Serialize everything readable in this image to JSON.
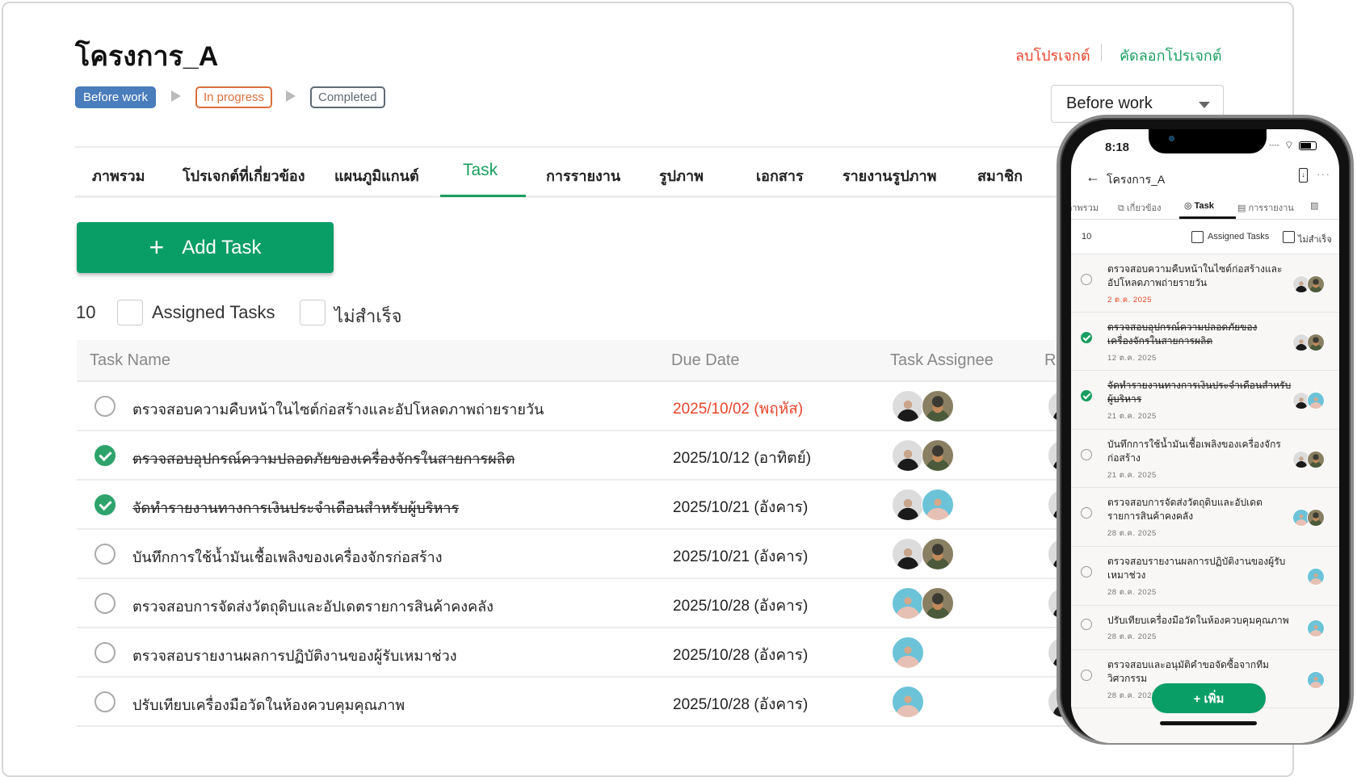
{
  "project": {
    "title": "โครงการ_A",
    "delete_label": "ลบโปรเจกต์",
    "copy_label": "คัดลอกโปรเจกต์"
  },
  "status_steps": [
    "Before work",
    "In progress",
    "Completed"
  ],
  "status_select": {
    "value": "Before work"
  },
  "tabs": [
    "ภาพรวม",
    "โปรเจกต์ที่เกี่ยวข้อง",
    "แผนภูมิแกนต์",
    "Task",
    "การรายงาน",
    "รูปภาพ",
    "เอกสาร",
    "รายงานรูปภาพ",
    "สมาชิก"
  ],
  "active_tab": "Task",
  "add_task_label": "Add Task",
  "filters": {
    "count": "10",
    "assigned_label": "Assigned Tasks",
    "incomplete_label": "ไม่สำเร็จ"
  },
  "columns": [
    "Task Name",
    "Due Date",
    "Task Assignee",
    "R"
  ],
  "tasks": [
    {
      "name": "ตรวจสอบความคืบหน้าในไซต์ก่อสร้างและอัปโหลดภาพถ่ายรายวัน",
      "due": "2025/10/02 (พฤหัส)",
      "due_short": "2 ต.ค. 2025",
      "done": false,
      "overdue": true,
      "assignees": [
        "a",
        "b"
      ]
    },
    {
      "name": "ตรวจสอบอุปกรณ์ความปลอดภัยของเครื่องจักรในสายการผลิต",
      "due": "2025/10/12 (อาทิตย์)",
      "due_short": "12 ต.ค. 2025",
      "done": true,
      "overdue": false,
      "assignees": [
        "a",
        "b"
      ]
    },
    {
      "name": "จัดทำรายงานทางการเงินประจำเดือนสำหรับผู้บริหาร",
      "due": "2025/10/21 (อังคาร)",
      "due_short": "21 ต.ค. 2025",
      "done": true,
      "overdue": false,
      "assignees": [
        "a",
        "c"
      ]
    },
    {
      "name": "บันทึกการใช้น้ำมันเชื้อเพลิงของเครื่องจักรก่อสร้าง",
      "due": "2025/10/21 (อังคาร)",
      "due_short": "21 ต.ค. 2025",
      "done": false,
      "overdue": false,
      "assignees": [
        "a",
        "b"
      ]
    },
    {
      "name": "ตรวจสอบการจัดส่งวัตถุดิบและอัปเดตรายการสินค้าคงคลัง",
      "due": "2025/10/28 (อังคาร)",
      "due_short": "28 ต.ค. 2025",
      "done": false,
      "overdue": false,
      "assignees": [
        "c",
        "b"
      ]
    },
    {
      "name": "ตรวจสอบรายงานผลการปฏิบัติงานของผู้รับเหมาช่วง",
      "due": "2025/10/28 (อังคาร)",
      "due_short": "28 ต.ค. 2025",
      "done": false,
      "overdue": false,
      "assignees": [
        "c"
      ]
    },
    {
      "name": "ปรับเทียบเครื่องมือวัดในห้องควบคุมคุณภาพ",
      "due": "2025/10/28 (อังคาร)",
      "due_short": "28 ต.ค. 2025",
      "done": false,
      "overdue": false,
      "assignees": [
        "c"
      ]
    },
    {
      "name": "ตรวจสอบและอนุมัติคำขอจัดซื้อจากทีมวิศวกรรม",
      "due_short": "28 ต.ค. 2025",
      "done": false,
      "overdue": false,
      "assignees": [
        "c"
      ]
    }
  ],
  "mobile": {
    "time": "8:18",
    "title": "โครงการ_A",
    "tabs": [
      "ภาพรวม",
      "เกี่ยวข้อง",
      "Task",
      "การรายงาน"
    ],
    "add_label": "+ เพิ่ม"
  },
  "colors": {
    "accent": "#0a9e67",
    "danger": "#e8452c",
    "before_work": "#4a7dbb",
    "in_progress": "#d9703c"
  }
}
